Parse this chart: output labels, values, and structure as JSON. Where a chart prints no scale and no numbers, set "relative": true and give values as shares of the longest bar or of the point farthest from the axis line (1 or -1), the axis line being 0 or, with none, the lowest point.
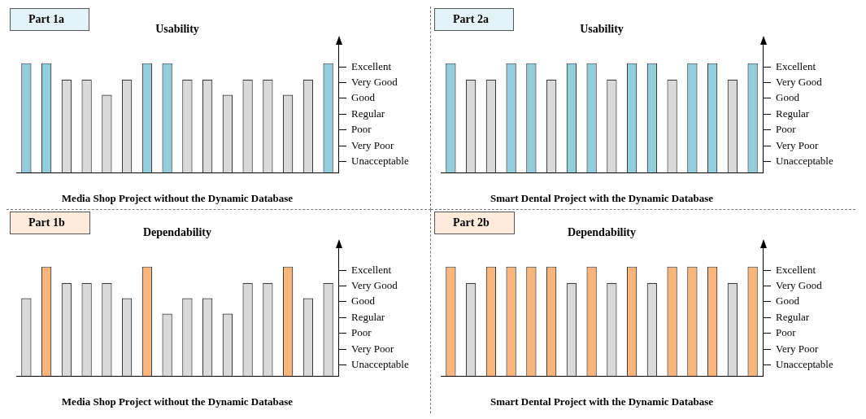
{
  "chart_data": [
    {
      "type": "bar",
      "title": "Usability",
      "xlabel": "Media Shop Project without the Dynamic Database",
      "relative": true,
      "categories": [
        null,
        null,
        null,
        null,
        null,
        null,
        null,
        null,
        null,
        null,
        null,
        null,
        null,
        null,
        null,
        null
      ],
      "values": [
        1,
        1,
        0.85,
        0.85,
        0.71,
        0.85,
        1,
        1,
        0.85,
        0.85,
        0.71,
        0.85,
        0.85,
        0.71,
        0.85,
        1
      ],
      "colors": [
        "#92cddc",
        "#92cddc",
        "#d9d9d9",
        "#d9d9d9",
        "#d9d9d9",
        "#d9d9d9",
        "#92cddc",
        "#92cddc",
        "#d9d9d9",
        "#d9d9d9",
        "#d9d9d9",
        "#d9d9d9",
        "#d9d9d9",
        "#d9d9d9",
        "#d9d9d9",
        "#92cddc"
      ],
      "annotations": [
        "Part 1a",
        "Excellent",
        "Very Good",
        "Good",
        "Regular",
        "Poor",
        "Very Poor",
        "Unacceptable"
      ],
      "grid": false,
      "legend": false
    },
    {
      "type": "bar",
      "title": "Usability",
      "xlabel": "Smart Dental Project with the Dynamic Database",
      "relative": true,
      "categories": [
        null,
        null,
        null,
        null,
        null,
        null,
        null,
        null,
        null,
        null,
        null,
        null,
        null,
        null,
        null,
        null
      ],
      "values": [
        1,
        0.85,
        0.85,
        1,
        1,
        0.85,
        1,
        1,
        0.85,
        1,
        1,
        0.85,
        1,
        1,
        0.85,
        1
      ],
      "colors": [
        "#92cddc",
        "#d9d9d9",
        "#d9d9d9",
        "#92cddc",
        "#92cddc",
        "#d9d9d9",
        "#92cddc",
        "#92cddc",
        "#d9d9d9",
        "#92cddc",
        "#92cddc",
        "#d9d9d9",
        "#92cddc",
        "#92cddc",
        "#d9d9d9",
        "#92cddc"
      ],
      "annotations": [
        "Part 2a",
        "Excellent",
        "Very Good",
        "Good",
        "Regular",
        "Poor",
        "Very Poor",
        "Unacceptable"
      ],
      "grid": false,
      "legend": false
    },
    {
      "type": "bar",
      "title": "Dependability",
      "xlabel": "Media Shop Project without the Dynamic Database",
      "relative": true,
      "categories": [
        null,
        null,
        null,
        null,
        null,
        null,
        null,
        null,
        null,
        null,
        null,
        null,
        null,
        null,
        null,
        null
      ],
      "values": [
        0.71,
        1,
        0.85,
        0.85,
        0.85,
        0.71,
        1,
        0.57,
        0.71,
        0.71,
        0.57,
        0.85,
        0.85,
        1,
        0.71,
        0.85
      ],
      "colors": [
        "#d9d9d9",
        "#fab57a",
        "#d9d9d9",
        "#d9d9d9",
        "#d9d9d9",
        "#d9d9d9",
        "#fab57a",
        "#d9d9d9",
        "#d9d9d9",
        "#d9d9d9",
        "#d9d9d9",
        "#d9d9d9",
        "#d9d9d9",
        "#fab57a",
        "#d9d9d9",
        "#d9d9d9"
      ],
      "annotations": [
        "Part 1b",
        "Excellent",
        "Very Good",
        "Good",
        "Regular",
        "Poor",
        "Very Poor",
        "Unacceptable"
      ],
      "grid": false,
      "legend": false
    },
    {
      "type": "bar",
      "title": "Dependability",
      "xlabel": "Smart Dental Project with the Dynamic Database",
      "relative": true,
      "categories": [
        null,
        null,
        null,
        null,
        null,
        null,
        null,
        null,
        null,
        null,
        null,
        null,
        null,
        null,
        null,
        null
      ],
      "values": [
        1,
        0.85,
        1,
        1,
        1,
        1,
        0.85,
        1,
        0.85,
        1,
        0.85,
        1,
        1,
        1,
        0.85,
        1
      ],
      "colors": [
        "#fab57a",
        "#d9d9d9",
        "#fab57a",
        "#fab57a",
        "#fab57a",
        "#fab57a",
        "#d9d9d9",
        "#fab57a",
        "#d9d9d9",
        "#fab57a",
        "#d9d9d9",
        "#fab57a",
        "#fab57a",
        "#fab57a",
        "#d9d9d9",
        "#fab57a"
      ],
      "annotations": [
        "Part 2b",
        "Excellent",
        "Very Good",
        "Good",
        "Regular",
        "Poor",
        "Very Poor",
        "Unacceptable"
      ],
      "grid": false,
      "legend": false
    }
  ]
}
